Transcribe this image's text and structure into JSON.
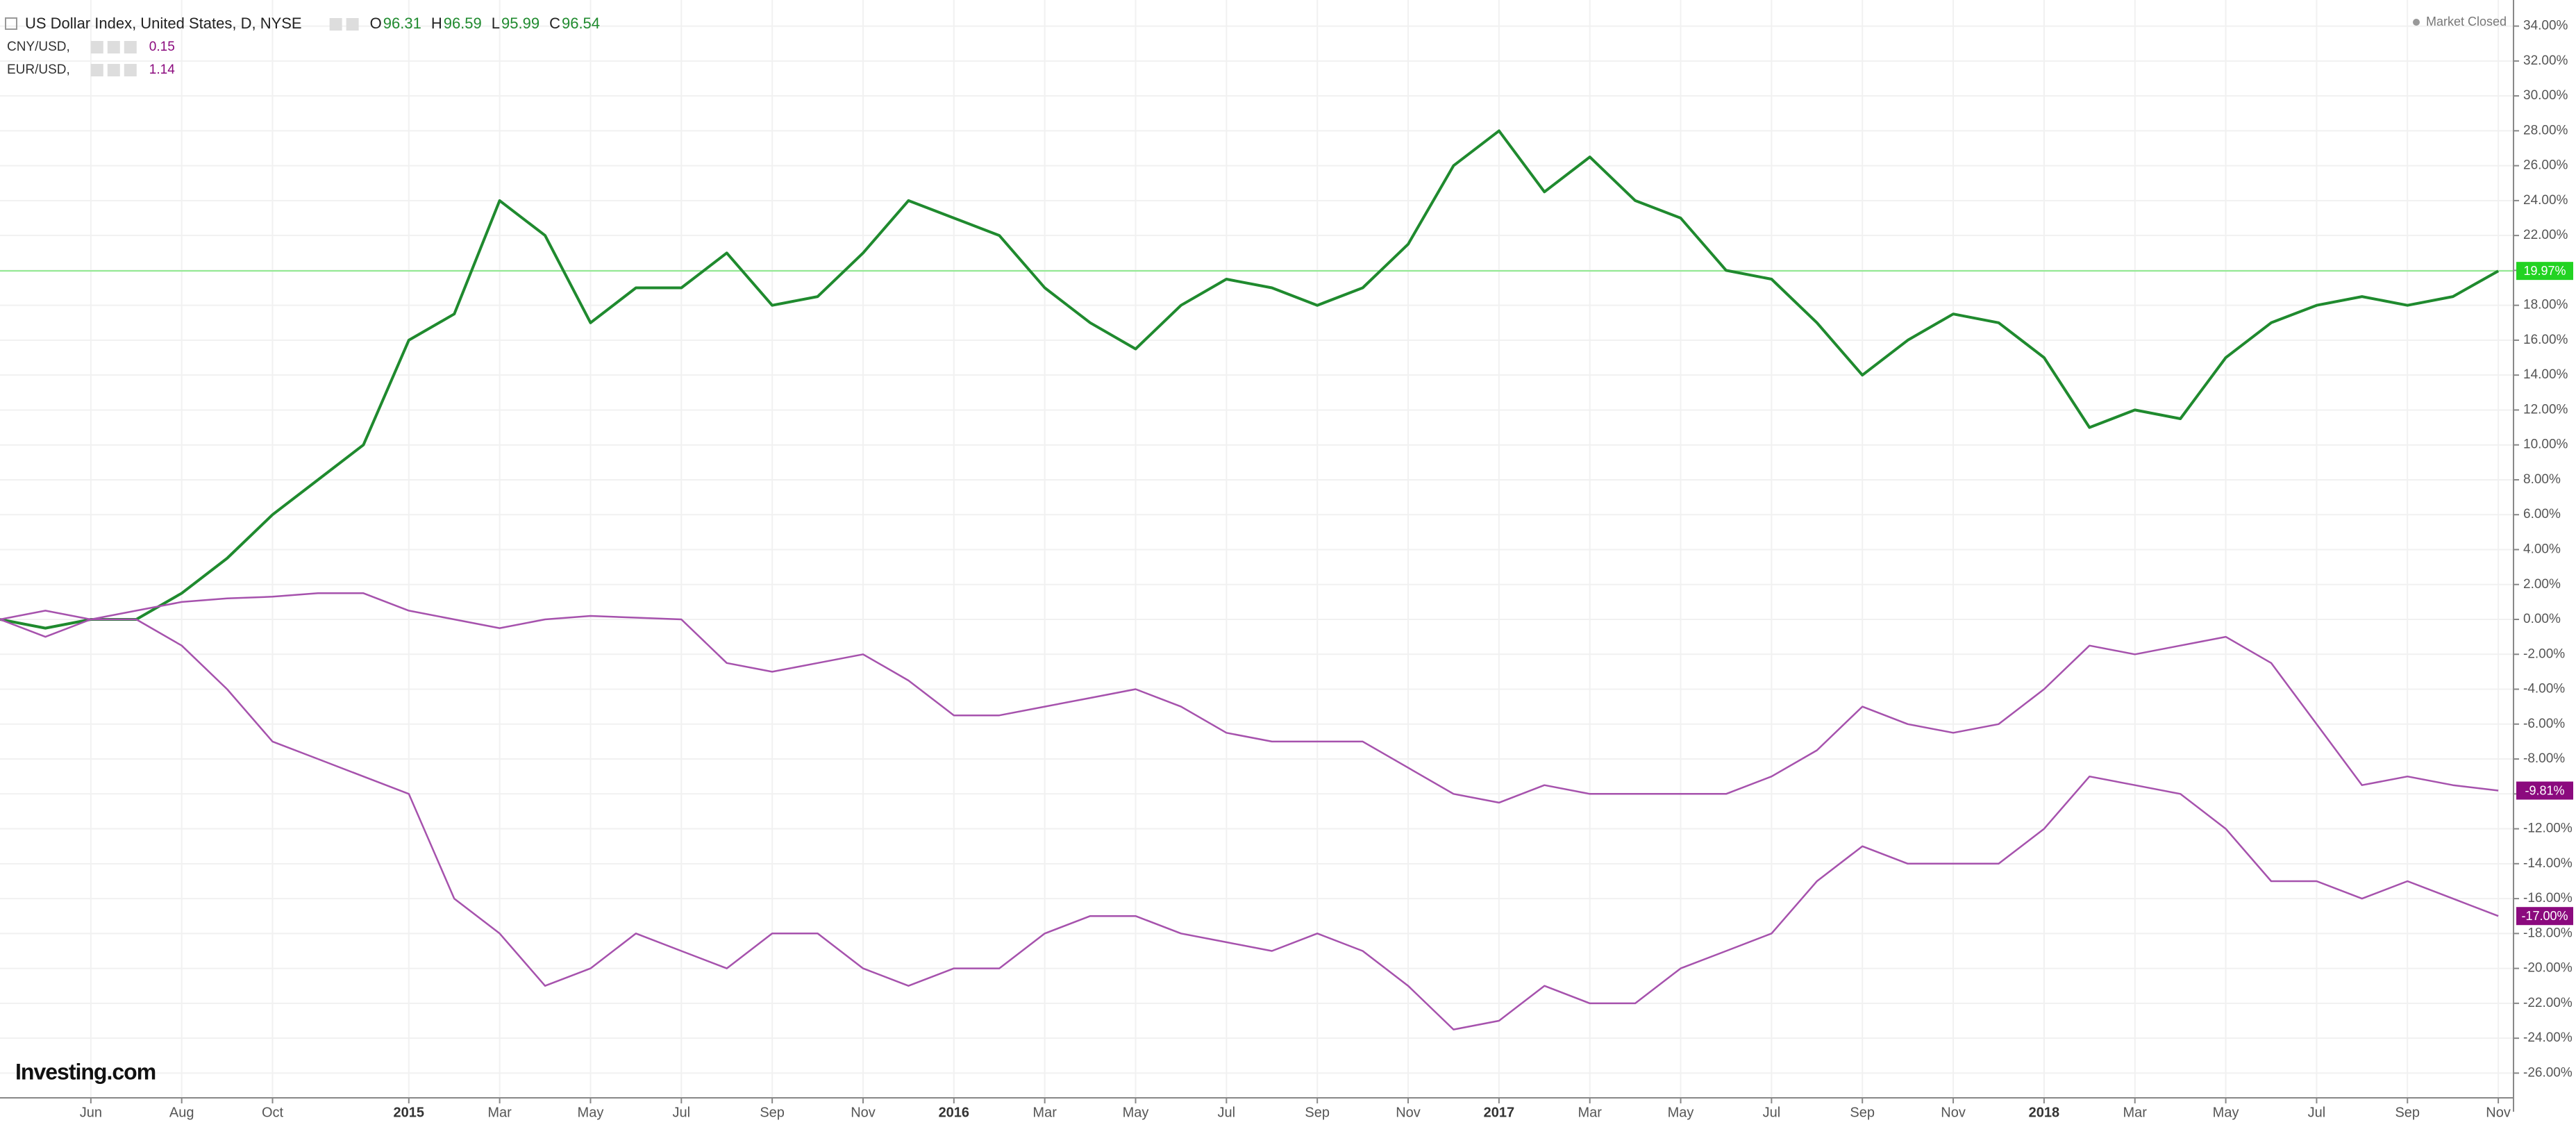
{
  "chart_data": {
    "type": "line",
    "header": {
      "title": "US Dollar Index, United States, D, NYSE",
      "ohlc": [
        {
          "key": "O",
          "value": "96.31"
        },
        {
          "key": "H",
          "value": "96.59"
        },
        {
          "key": "L",
          "value": "95.99"
        },
        {
          "key": "C",
          "value": "96.54"
        }
      ],
      "status": "Market Closed",
      "brand": "Investing.com"
    },
    "categories": [
      null,
      null,
      "Jun",
      null,
      "Aug",
      null,
      "Oct",
      null,
      null,
      "2015",
      null,
      "Mar",
      null,
      "May",
      null,
      "Jul",
      null,
      "Sep",
      null,
      "Nov",
      null,
      "2016",
      null,
      "Mar",
      null,
      "May",
      null,
      "Jul",
      null,
      "Sep",
      null,
      "Nov",
      null,
      "2017",
      null,
      "Mar",
      null,
      "May",
      null,
      "Jul",
      null,
      "Sep",
      null,
      "Nov",
      null,
      "2018",
      null,
      "Mar",
      null,
      "May",
      null,
      "Jul",
      null,
      "Sep",
      null,
      "Nov"
    ],
    "year_labels": [
      "2015",
      "2016",
      "2017",
      "2018"
    ],
    "series": [
      {
        "name": "US Dollar Index, United States, D, NYSE",
        "color": "#1f8a2e",
        "badge_color": "#22d322",
        "values": [
          0,
          -0.5,
          0,
          0,
          1.5,
          3.5,
          6,
          8,
          10,
          16,
          17.5,
          24,
          22,
          17,
          19,
          19,
          21,
          18,
          18.5,
          21,
          24,
          23,
          22,
          19,
          17,
          15.5,
          18,
          19.5,
          19,
          18,
          19,
          21.5,
          26,
          28,
          24.5,
          26.5,
          24,
          23,
          20,
          19.5,
          17,
          14,
          16,
          17.5,
          17,
          15,
          11,
          12,
          11.5,
          15,
          17,
          18,
          18.5,
          18,
          18.5,
          19.97
        ],
        "end_label": "19.97%"
      },
      {
        "name": "CNY/USD,",
        "legend_value": "0.15",
        "color": "#a652ad",
        "badge_color": "#8b0a7e",
        "values": [
          0,
          0.5,
          0,
          0.5,
          1,
          1.2,
          1.3,
          1.5,
          1.5,
          0.5,
          0,
          -0.5,
          0,
          0.2,
          0.1,
          0,
          -2.5,
          -3,
          -2.5,
          -2,
          -3.5,
          -5.5,
          -5.5,
          -5,
          -4.5,
          -4,
          -5,
          -6.5,
          -7,
          -7,
          -7,
          -8.5,
          -10,
          -10.5,
          -9.5,
          -10,
          -10,
          -10,
          -10,
          -9,
          -7.5,
          -5,
          -6,
          -6.5,
          -6,
          -4,
          -1.5,
          -2,
          -1.5,
          -1,
          -2.5,
          -6,
          -9.5,
          -9,
          -9.5,
          -9.81
        ],
        "end_label": "-9.81%"
      },
      {
        "name": "EUR/USD,",
        "legend_value": "1.14",
        "color": "#a652ad",
        "badge_color": "#8b0a7e",
        "values": [
          0,
          -1,
          0,
          0,
          -1.5,
          -4,
          -7,
          -8,
          -9,
          -10,
          -16,
          -18,
          -21,
          -20,
          -18,
          -19,
          -20,
          -18,
          -18,
          -20,
          -21,
          -20,
          -20,
          -18,
          -17,
          -17,
          -18,
          -18.5,
          -19,
          -18,
          -19,
          -21,
          -23.5,
          -23,
          -21,
          -22,
          -22,
          -20,
          -19,
          -18,
          -15,
          -13,
          -14,
          -14,
          -14,
          -12,
          -9,
          -9.5,
          -10,
          -12,
          -15,
          -15,
          -16,
          -15,
          -16,
          -17
        ],
        "end_label": "-17.00%"
      }
    ],
    "price_line": {
      "value": 19.97,
      "color": "#8ee88e"
    },
    "ylim": [
      -27,
      35
    ],
    "yticks": [
      {
        "value": 34,
        "label": "34.00%"
      },
      {
        "value": 32,
        "label": "32.00%"
      },
      {
        "value": 30,
        "label": "30.00%"
      },
      {
        "value": 28,
        "label": "28.00%"
      },
      {
        "value": 26,
        "label": "26.00%"
      },
      {
        "value": 24,
        "label": "24.00%"
      },
      {
        "value": 22,
        "label": "22.00%"
      },
      {
        "value": 20,
        "label": "20.00%"
      },
      {
        "value": 18,
        "label": "18.00%"
      },
      {
        "value": 16,
        "label": "16.00%"
      },
      {
        "value": 14,
        "label": "14.00%"
      },
      {
        "value": 12,
        "label": "12.00%"
      },
      {
        "value": 10,
        "label": "10.00%"
      },
      {
        "value": 8,
        "label": "8.00%"
      },
      {
        "value": 6,
        "label": "6.00%"
      },
      {
        "value": 4,
        "label": "4.00%"
      },
      {
        "value": 2,
        "label": "2.00%"
      },
      {
        "value": 0,
        "label": "0.00%"
      },
      {
        "value": -2,
        "label": "-2.00%"
      },
      {
        "value": -4,
        "label": "-4.00%"
      },
      {
        "value": -6,
        "label": "-6.00%"
      },
      {
        "value": -8,
        "label": "-8.00%"
      },
      {
        "value": -10,
        "label": "-10.00%"
      },
      {
        "value": -12,
        "label": "-12.00%"
      },
      {
        "value": -14,
        "label": "-14.00%"
      },
      {
        "value": -16,
        "label": "-16.00%"
      },
      {
        "value": -18,
        "label": "-18.00%"
      },
      {
        "value": -20,
        "label": "-20.00%"
      },
      {
        "value": -22,
        "label": "-22.00%"
      },
      {
        "value": -24,
        "label": "-24.00%"
      },
      {
        "value": -26,
        "label": "-26.00%"
      }
    ],
    "grid": true
  }
}
